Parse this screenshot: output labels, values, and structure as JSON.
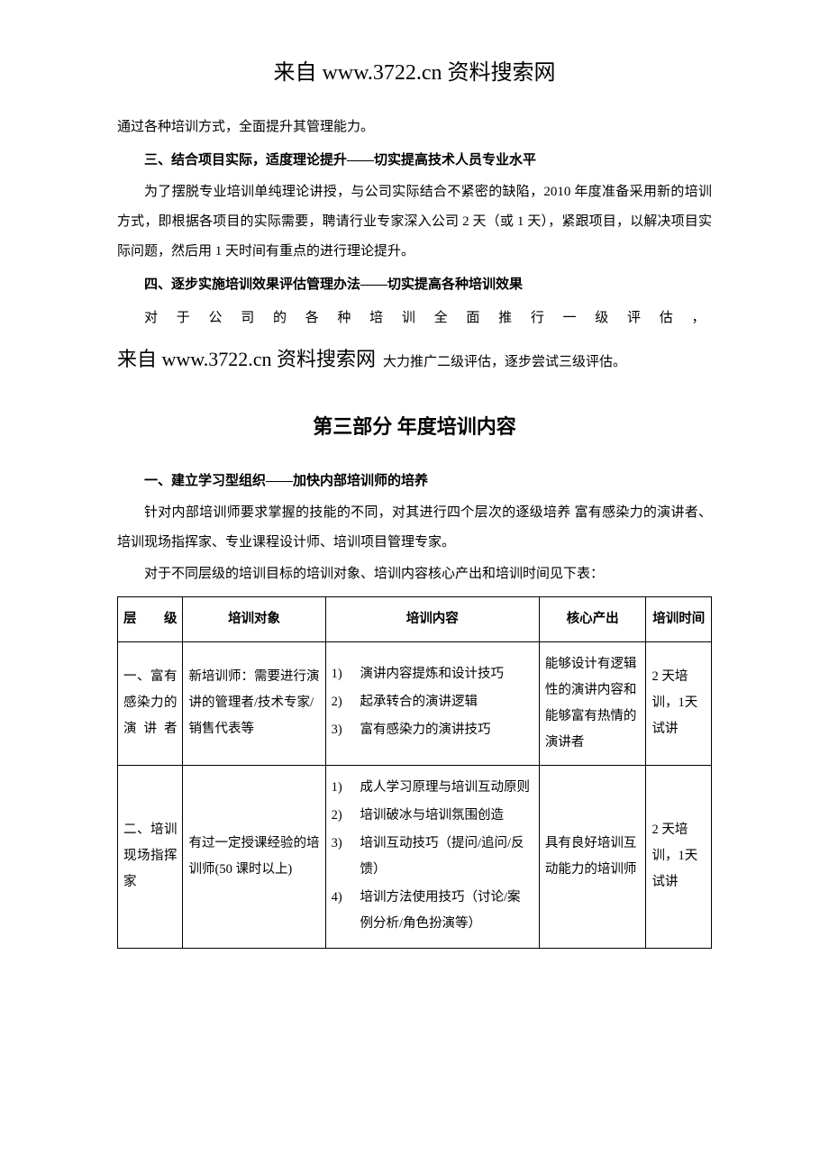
{
  "header_source": "来自  www.3722.cn 资料搜索网",
  "para1": "通过各种培训方式，全面提升其管理能力。",
  "h3": "三、结合项目实际，适度理论提升——切实提高技术人员专业水平",
  "para3": "为了摆脱专业培训单纯理论讲授，与公司实际结合不紧密的缺陷，2010 年度准备采用新的培训方式，即根据各项目的实际需要，聘请行业专家深入公司 2 天（或 1 天），紧跟项目，以解决项目实际问题，然后用 1 天时间有重点的进行理论提升。",
  "h4": "四、逐步实施培训效果评估管理办法——切实提高各种培训效果",
  "para4_line1": "对于公司的各种培训全面推行一级评估，",
  "para4_inline_src": "来自  www.3722.cn 资料搜索网",
  "para4_tail": "大力推广二级评估，逐步尝试三级评估。",
  "section_title": "第三部分  年度培训内容",
  "sub_h1": "一、建立学习型组织——加快内部培训师的培养",
  "sub_p1": "针对内部培训师要求掌握的技能的不同，对其进行四个层次的逐级培养 富有感染力的演讲者、培训现场指挥家、专业课程设计师、培训项目管理专家。",
  "sub_p2": "对于不同层级的培训目标的培训对象、培训内容核心产出和培训时间见下表：",
  "table": {
    "columns": [
      "层级",
      "培训对象",
      "培训内容",
      "核心产出",
      "培训时间"
    ],
    "rows": [
      {
        "level": "一、富有感染力的演讲者",
        "target": "新培训师：需要进行演讲的管理者/技术专家/销售代表等",
        "content": [
          "演讲内容提炼和设计技巧",
          "起承转合的演讲逻辑",
          "富有感染力的演讲技巧"
        ],
        "output": "能够设计有逻辑性的演讲内容和能够富有热情的演讲者",
        "time": "2 天培训，1天试讲"
      },
      {
        "level": "二、培训现场指挥家",
        "target": "有过一定授课经验的培训师(50 课时以上)",
        "content": [
          "成人学习原理与培训互动原则",
          "培训破冰与培训氛围创造",
          "培训互动技巧（提问/追问/反馈）",
          "培训方法使用技巧（讨论/案例分析/角色扮演等）"
        ],
        "output": "具有良好培训互动能力的培训师",
        "time": "2 天培训，1天试讲"
      }
    ],
    "border_color": "#000000",
    "background_color": "#ffffff",
    "font_size": 14.5
  },
  "colors": {
    "text": "#000000",
    "background": "#ffffff"
  }
}
